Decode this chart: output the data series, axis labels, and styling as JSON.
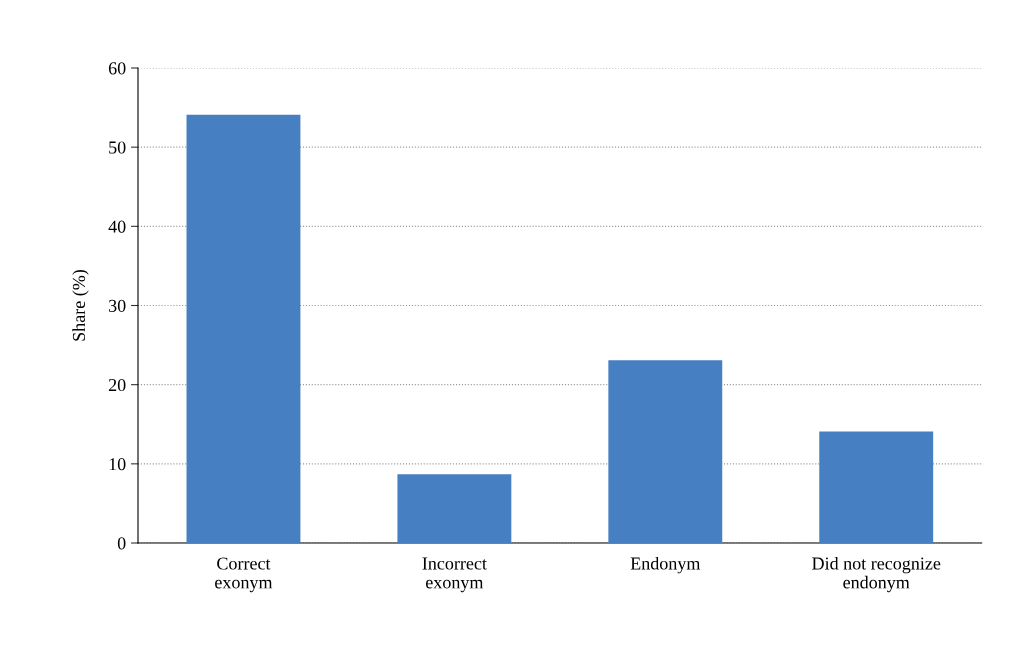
{
  "chart_data": {
    "type": "bar",
    "ylabel": "Share (%)",
    "categories": [
      "Correct\nexonym",
      "Incorrect\nexonym",
      "Endonym",
      "Did not recognize\nendonym"
    ],
    "values": [
      54.1,
      8.7,
      23.1,
      14.1
    ],
    "color": "#4680c2",
    "ylim": [
      0,
      60
    ],
    "yticks": [
      0,
      10,
      20,
      30,
      40,
      50,
      60
    ],
    "grid": "y"
  }
}
